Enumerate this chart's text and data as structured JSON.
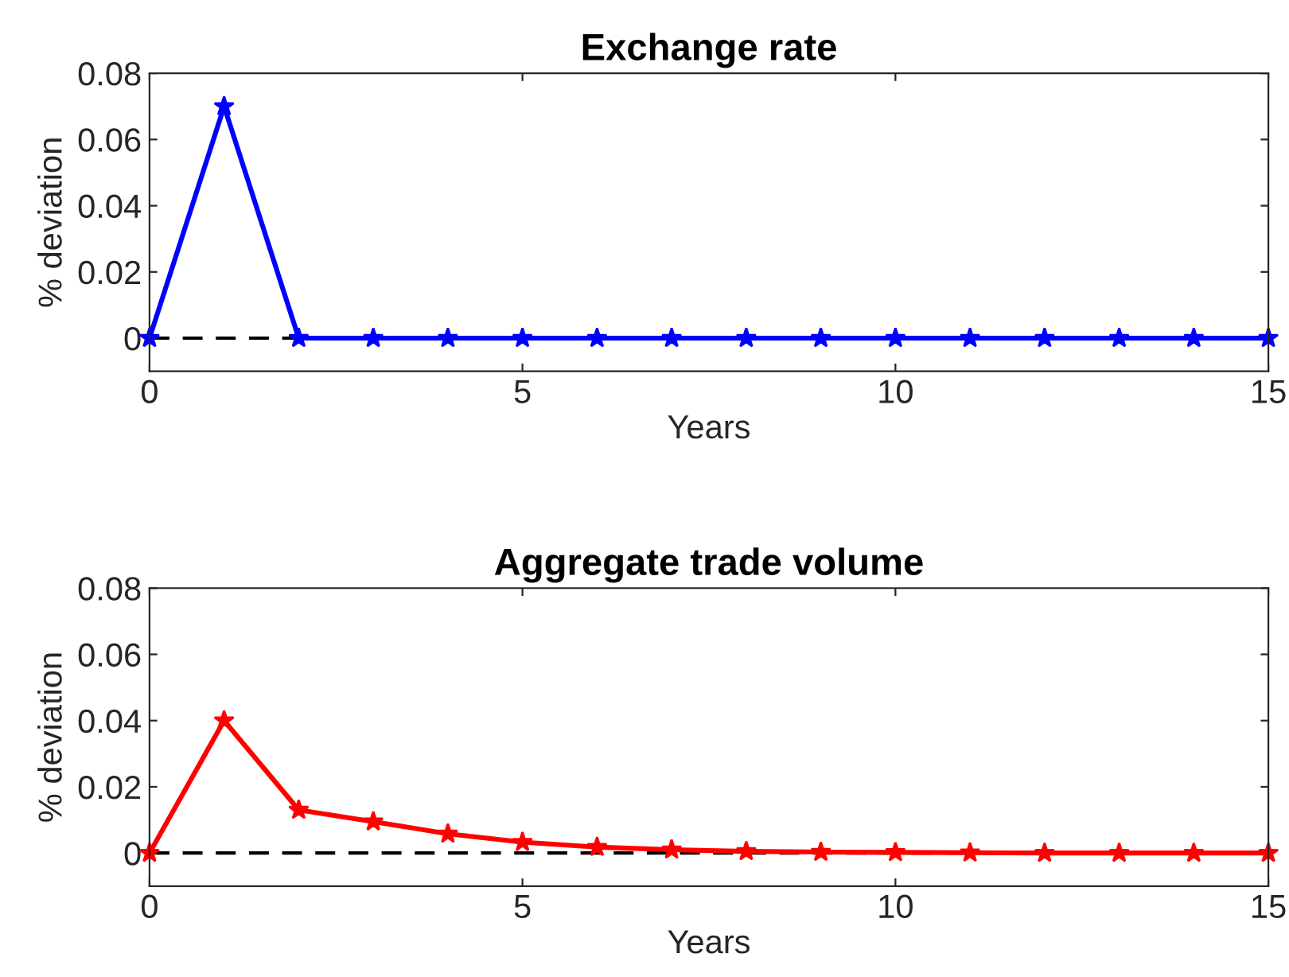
{
  "chart_data": [
    {
      "type": "line",
      "title": "Exchange rate",
      "xlabel": "Years",
      "ylabel": "% deviation",
      "x": [
        0,
        1,
        2,
        3,
        4,
        5,
        6,
        7,
        8,
        9,
        10,
        11,
        12,
        13,
        14,
        15
      ],
      "series": [
        {
          "color": "#0000ff",
          "values": [
            0,
            0.07,
            0,
            0,
            0,
            0,
            0,
            0,
            0,
            0,
            0,
            0,
            0,
            0,
            0,
            0
          ]
        }
      ],
      "xlim": [
        0,
        15
      ],
      "xticks": [
        0,
        5,
        10,
        15
      ],
      "ylim": [
        -0.01,
        0.08
      ],
      "yticks": [
        0,
        0.02,
        0.04,
        0.06,
        0.08
      ],
      "ref_lines": [
        {
          "axis": "y",
          "value": 0,
          "color": "#000000",
          "line_style": "dashed"
        }
      ],
      "marker": "star",
      "line_style": "solid",
      "grid": false,
      "legend": false
    },
    {
      "type": "line",
      "title": "Aggregate trade volume",
      "xlabel": "Years",
      "ylabel": "% deviation",
      "x": [
        0,
        1,
        2,
        3,
        4,
        5,
        6,
        7,
        8,
        9,
        10,
        11,
        12,
        13,
        14,
        15
      ],
      "series": [
        {
          "color": "#ff0000",
          "values": [
            0,
            0.04,
            0.013,
            0.0095,
            0.0058,
            0.0033,
            0.0018,
            0.001,
            0.0005,
            0.0003,
            0.0002,
            0.0001,
            0,
            0,
            0,
            0
          ]
        }
      ],
      "xlim": [
        0,
        15
      ],
      "xticks": [
        0,
        5,
        10,
        15
      ],
      "ylim": [
        -0.01,
        0.08
      ],
      "yticks": [
        0,
        0.02,
        0.04,
        0.06,
        0.08
      ],
      "ref_lines": [
        {
          "axis": "y",
          "value": 0,
          "color": "#000000",
          "line_style": "dashed"
        }
      ],
      "marker": "star",
      "line_style": "solid",
      "grid": false,
      "legend": false
    }
  ]
}
